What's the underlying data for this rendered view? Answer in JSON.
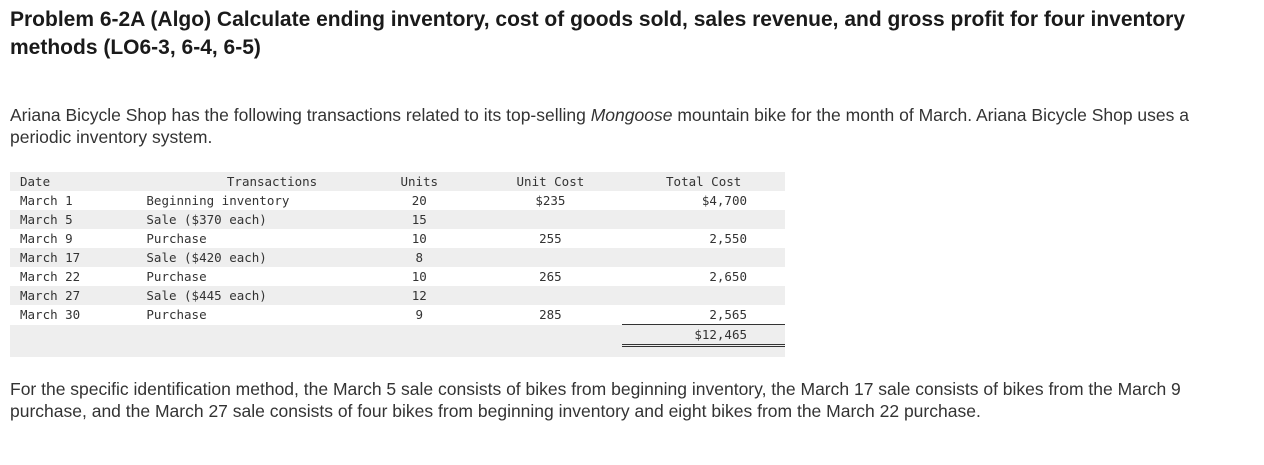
{
  "problem": {
    "title": "Problem 6-2A (Algo) Calculate ending inventory, cost of goods sold, sales revenue, and gross profit for four inventory methods (LO6-3, 6-4, 6-5)",
    "intro_before": "Ariana Bicycle Shop has the following transactions related to its top-selling ",
    "intro_product": "Mongoose",
    "intro_after": " mountain bike for the month of March. Ariana Bicycle Shop uses a periodic inventory system.",
    "outro": "For the specific identification method, the March 5 sale consists of bikes from beginning inventory, the March 17 sale consists of bikes from the March 9 purchase, and the March 27 sale consists of four bikes from beginning inventory and eight bikes from the March 22 purchase."
  },
  "table": {
    "headers": {
      "date": "Date",
      "transactions": "Transactions",
      "units": "Units",
      "unit_cost": "Unit Cost",
      "total_cost": "Total Cost"
    },
    "rows": [
      {
        "date": "March 1",
        "transaction": "Beginning inventory",
        "units": "20",
        "unit_cost": "$235",
        "total_cost": "$4,700"
      },
      {
        "date": "March 5",
        "transaction": "Sale ($370 each)",
        "units": "15",
        "unit_cost": "",
        "total_cost": ""
      },
      {
        "date": "March 9",
        "transaction": "Purchase",
        "units": "10",
        "unit_cost": "255",
        "total_cost": "2,550"
      },
      {
        "date": "March 17",
        "transaction": "Sale ($420 each)",
        "units": "8",
        "unit_cost": "",
        "total_cost": ""
      },
      {
        "date": "March 22",
        "transaction": "Purchase",
        "units": "10",
        "unit_cost": "265",
        "total_cost": "2,650"
      },
      {
        "date": "March 27",
        "transaction": "Sale ($445 each)",
        "units": "12",
        "unit_cost": "",
        "total_cost": ""
      },
      {
        "date": "March 30",
        "transaction": "Purchase",
        "units": "9",
        "unit_cost": "285",
        "total_cost": "2,565"
      }
    ],
    "total_cost_sum": "$12,465"
  }
}
